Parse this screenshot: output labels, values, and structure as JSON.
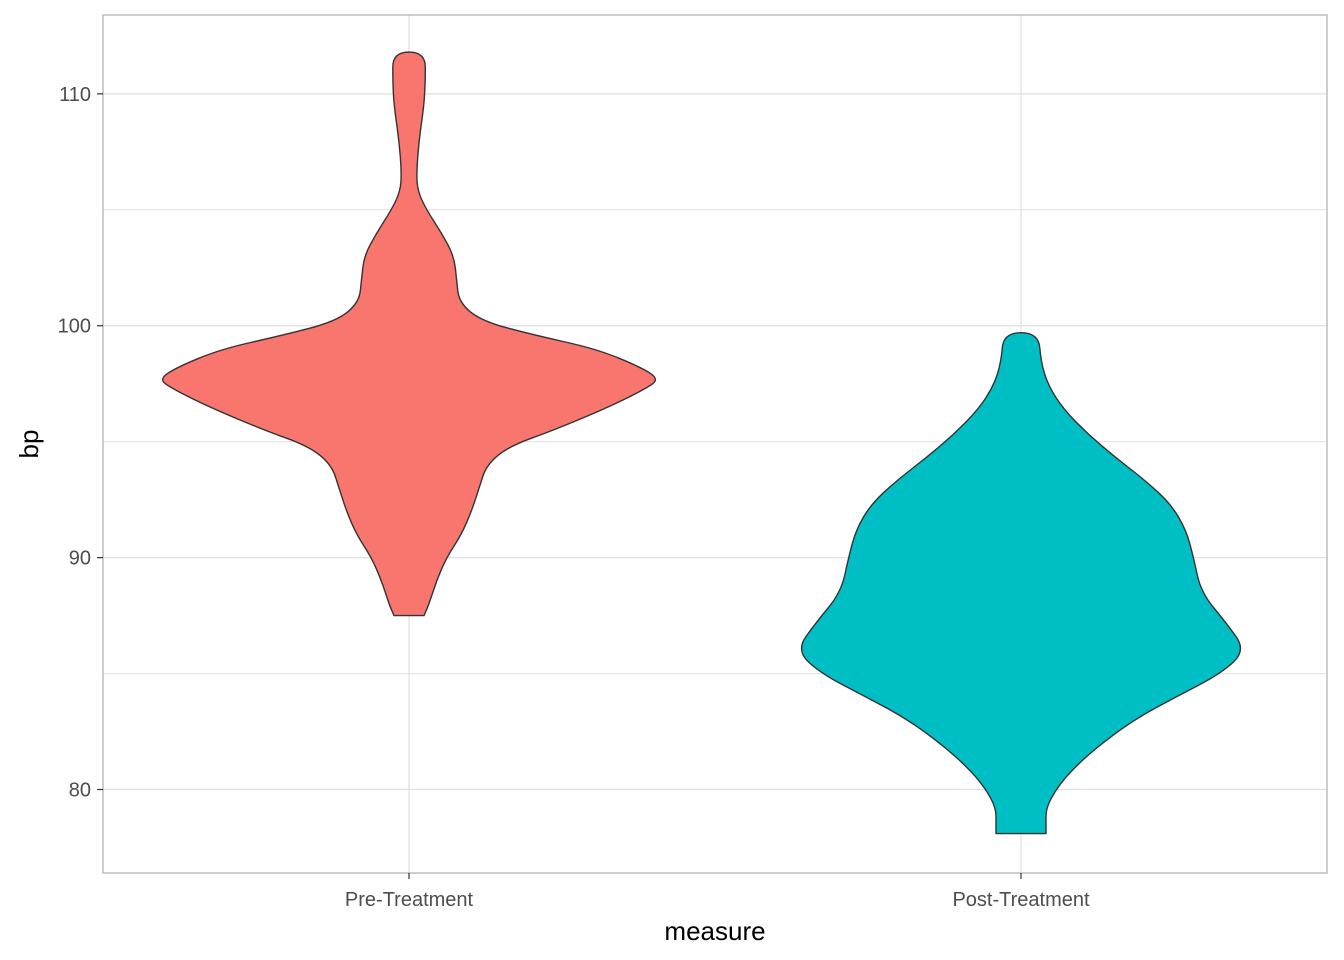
{
  "chart_data": {
    "type": "violin",
    "xlabel": "measure",
    "ylabel": "bp",
    "categories": [
      "Pre-Treatment",
      "Post-Treatment"
    ],
    "ylim": [
      76.4,
      113.4
    ],
    "y_ticks": [
      80,
      90,
      100,
      110
    ],
    "y_minor_ticks": [
      85,
      95,
      105
    ],
    "grid": true,
    "legend": "none",
    "colors": {
      "Pre-Treatment": "#F8766D",
      "Post-Treatment": "#00BFC4",
      "outline": "#333333",
      "grid": "#e0e0e0",
      "panel_border": "#b3b3b3"
    },
    "violins": [
      {
        "category": "Pre-Treatment",
        "y_min": 87.5,
        "y_max": 111.8,
        "density_profile": [
          [
            87.5,
            0.06
          ],
          [
            88.0,
            0.08
          ],
          [
            89.0,
            0.11
          ],
          [
            90.0,
            0.15
          ],
          [
            91.0,
            0.21
          ],
          [
            92.0,
            0.25
          ],
          [
            93.0,
            0.28
          ],
          [
            94.0,
            0.31
          ],
          [
            94.8,
            0.4
          ],
          [
            95.5,
            0.58
          ],
          [
            96.5,
            0.8
          ],
          [
            97.3,
            0.95
          ],
          [
            97.7,
            1.0
          ],
          [
            98.2,
            0.93
          ],
          [
            99.0,
            0.75
          ],
          [
            99.6,
            0.5
          ],
          [
            100.2,
            0.29
          ],
          [
            101.0,
            0.2
          ],
          [
            102.0,
            0.19
          ],
          [
            103.0,
            0.18
          ],
          [
            104.0,
            0.13
          ],
          [
            105.0,
            0.07
          ],
          [
            105.8,
            0.035
          ],
          [
            106.6,
            0.03
          ],
          [
            108.0,
            0.04
          ],
          [
            109.5,
            0.06
          ],
          [
            110.5,
            0.065
          ],
          [
            111.8,
            0.065
          ]
        ]
      },
      {
        "category": "Post-Treatment",
        "y_min": 78.1,
        "y_max": 99.7,
        "density_profile": [
          [
            78.1,
            0.1
          ],
          [
            78.5,
            0.1
          ],
          [
            79.2,
            0.1
          ],
          [
            80.0,
            0.14
          ],
          [
            80.8,
            0.2
          ],
          [
            81.8,
            0.3
          ],
          [
            83.0,
            0.45
          ],
          [
            84.0,
            0.62
          ],
          [
            85.0,
            0.8
          ],
          [
            86.0,
            0.9
          ],
          [
            87.2,
            0.82
          ],
          [
            88.5,
            0.72
          ],
          [
            90.0,
            0.69
          ],
          [
            91.2,
            0.66
          ],
          [
            92.3,
            0.6
          ],
          [
            93.3,
            0.5
          ],
          [
            94.3,
            0.38
          ],
          [
            95.3,
            0.27
          ],
          [
            96.4,
            0.17
          ],
          [
            97.4,
            0.11
          ],
          [
            98.4,
            0.08
          ],
          [
            99.7,
            0.07
          ]
        ]
      }
    ]
  }
}
